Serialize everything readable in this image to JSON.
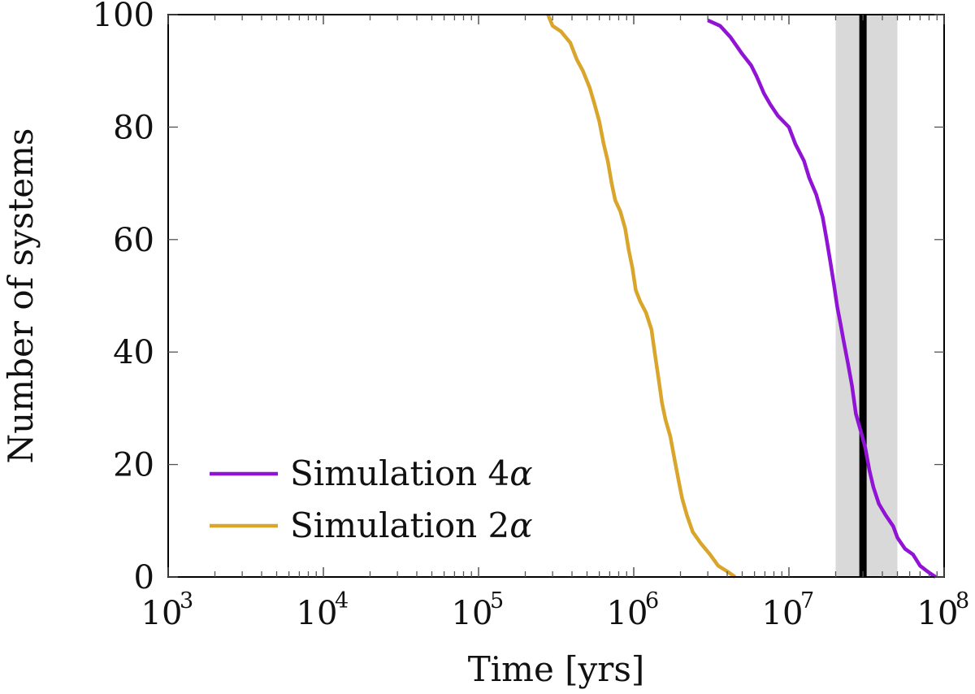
{
  "chart_data": {
    "type": "line",
    "title": "",
    "xlabel": "Time [yrs]",
    "ylabel": "Number of systems",
    "xscale": "log",
    "xlim": [
      1000,
      100000000
    ],
    "ylim": [
      0,
      100
    ],
    "x_ticks": [
      {
        "base": "10",
        "exp": "3",
        "value": 1000
      },
      {
        "base": "10",
        "exp": "4",
        "value": 10000
      },
      {
        "base": "10",
        "exp": "5",
        "value": 100000
      },
      {
        "base": "10",
        "exp": "6",
        "value": 1000000
      },
      {
        "base": "10",
        "exp": "7",
        "value": 10000000
      },
      {
        "base": "10",
        "exp": "8",
        "value": 100000000
      }
    ],
    "y_ticks": [
      "0",
      "20",
      "40",
      "60",
      "80",
      "100"
    ],
    "grid": false,
    "legend_position": "bottom-left",
    "shaded_band": {
      "x_start": 20000000,
      "x_end": 50000000,
      "color": "#d9d9d9"
    },
    "vertical_line": {
      "x": 30000000,
      "color": "#000000"
    },
    "series": [
      {
        "name": "Simulation 4α",
        "legend_prefix": "Simulation 4",
        "legend_symbol": "α",
        "color": "#9013d6",
        "points": [
          [
            3000000,
            99
          ],
          [
            3600000,
            98
          ],
          [
            4200000,
            96
          ],
          [
            5000000,
            93
          ],
          [
            5700000,
            91
          ],
          [
            6200000,
            89
          ],
          [
            6900000,
            86
          ],
          [
            7600000,
            84
          ],
          [
            8500000,
            82
          ],
          [
            10000000,
            80
          ],
          [
            11000000,
            77
          ],
          [
            12500000,
            74
          ],
          [
            13500000,
            71
          ],
          [
            15000000,
            68
          ],
          [
            16500000,
            64
          ],
          [
            17500000,
            60
          ],
          [
            18500000,
            56
          ],
          [
            19500000,
            52
          ],
          [
            20500000,
            48
          ],
          [
            21500000,
            45
          ],
          [
            22500000,
            42
          ],
          [
            24000000,
            38
          ],
          [
            25500000,
            34
          ],
          [
            27000000,
            29
          ],
          [
            29000000,
            26
          ],
          [
            31000000,
            23
          ],
          [
            33000000,
            19
          ],
          [
            35000000,
            16
          ],
          [
            38000000,
            13
          ],
          [
            42000000,
            11
          ],
          [
            47000000,
            9
          ],
          [
            50000000,
            7
          ],
          [
            56000000,
            5
          ],
          [
            63000000,
            4
          ],
          [
            70000000,
            2
          ],
          [
            78000000,
            1
          ],
          [
            88000000,
            0
          ]
        ]
      },
      {
        "name": "Simulation 2α",
        "legend_prefix": "Simulation 2",
        "legend_symbol": "α",
        "color": "#d9a52b",
        "points": [
          [
            280000,
            100
          ],
          [
            300000,
            98
          ],
          [
            340000,
            97
          ],
          [
            390000,
            95
          ],
          [
            430000,
            92
          ],
          [
            470000,
            90
          ],
          [
            520000,
            87
          ],
          [
            560000,
            84
          ],
          [
            600000,
            81
          ],
          [
            640000,
            77
          ],
          [
            680000,
            74
          ],
          [
            720000,
            70
          ],
          [
            760000,
            67
          ],
          [
            820000,
            65
          ],
          [
            880000,
            62
          ],
          [
            930000,
            58
          ],
          [
            980000,
            55
          ],
          [
            1030000,
            51
          ],
          [
            1100000,
            49
          ],
          [
            1200000,
            47
          ],
          [
            1300000,
            44
          ],
          [
            1380000,
            39
          ],
          [
            1450000,
            35
          ],
          [
            1520000,
            31
          ],
          [
            1600000,
            28
          ],
          [
            1720000,
            25
          ],
          [
            1830000,
            21
          ],
          [
            1950000,
            17
          ],
          [
            2050000,
            14
          ],
          [
            2200000,
            11
          ],
          [
            2400000,
            8
          ],
          [
            2700000,
            6
          ],
          [
            3100000,
            4
          ],
          [
            3500000,
            2
          ],
          [
            4000000,
            1
          ],
          [
            4500000,
            0
          ]
        ]
      }
    ]
  }
}
